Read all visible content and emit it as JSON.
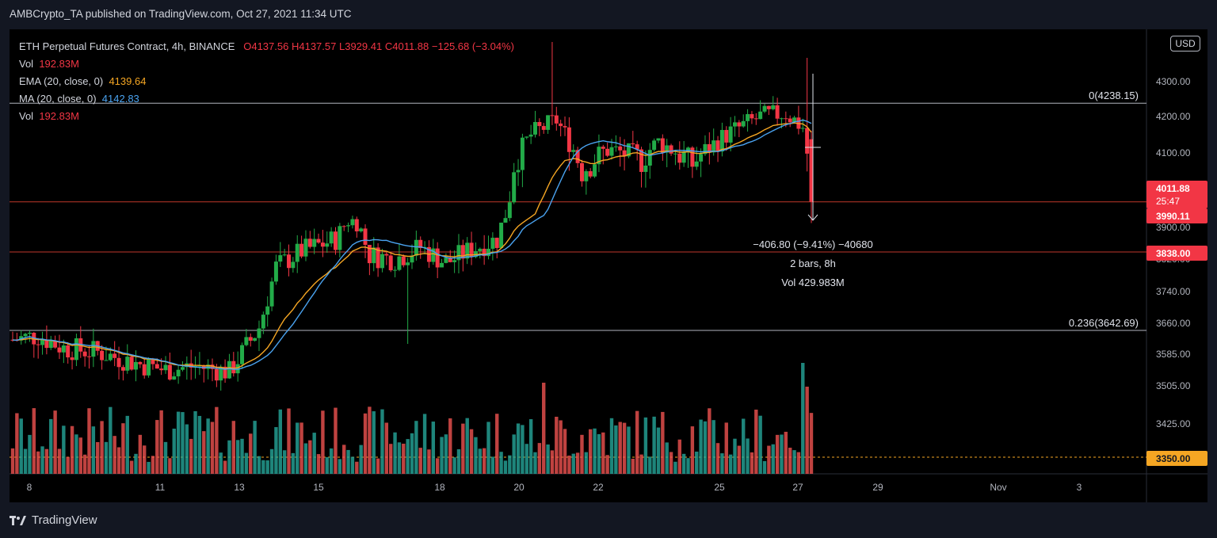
{
  "header": {
    "publisher": "AMBCrypto_TA published on TradingView.com, Oct 27, 2021 11:34 UTC"
  },
  "legend": {
    "symbol": "ETH Perpetual Futures Contract, 4h, BINANCE",
    "o": "O4137.56",
    "h": "H4137.57",
    "l": "L3929.41",
    "c": "C4011.88",
    "change": "−125.68 (−3.04%)",
    "vol_label": "Vol",
    "vol_value": "192.83M",
    "ema_label": "EMA (20, close, 0)",
    "ema_value": "4139.64",
    "ma_label": "MA (20, close, 0)",
    "ma_value": "4142.83",
    "vol2_label": "Vol",
    "vol2_value": "192.83M"
  },
  "currency_badge": "USD",
  "fib_levels": [
    {
      "label": "0(4238.15)",
      "price": 4238.15
    },
    {
      "label": "0.236(3642.69)",
      "price": 3642.69
    }
  ],
  "price_lines": [
    {
      "price": 4011.88
    },
    {
      "price": 3838.0
    }
  ],
  "measure": {
    "line1": "−406.80 (−9.41%) −40680",
    "line2": "2 bars, 8h",
    "line3": "Vol 429.983M"
  },
  "price_tags": [
    {
      "text": "4011.88",
      "price": 4011.88
    },
    {
      "text": "25:47",
      "price": 3990.11
    },
    {
      "text": "3990.11",
      "price": 3990.11
    },
    {
      "text": "3838.00",
      "price": 3838.0
    },
    {
      "text": "3350.00",
      "price": 3350.0
    }
  ],
  "footer": {
    "brand": "TradingView"
  },
  "colors": {
    "up": "#22ab48",
    "down": "#f23645",
    "ema": "#f5a623",
    "ma": "#4aa3f0",
    "vol_up": "#26a69a",
    "vol_down": "#ef5350"
  },
  "chart_data": {
    "type": "candlestick",
    "title": "ETH Perpetual Futures Contract, 4h, BINANCE",
    "x_ticks": [
      "8",
      "11",
      "13",
      "15",
      "18",
      "20",
      "22",
      "25",
      "27",
      "29",
      "Nov",
      "3"
    ],
    "y_ticks": [
      "4300.00",
      "4200.00",
      "4100.00",
      "3900.00",
      "3820.00",
      "3740.00",
      "3660.00",
      "3585.00",
      "3505.00",
      "3425.00"
    ],
    "ylim": [
      3350,
      4350
    ],
    "series": [
      {
        "name": "EMA (20, close, 0)",
        "last": 4139.64
      },
      {
        "name": "MA (20, close, 0)",
        "last": 4142.83
      }
    ]
  }
}
